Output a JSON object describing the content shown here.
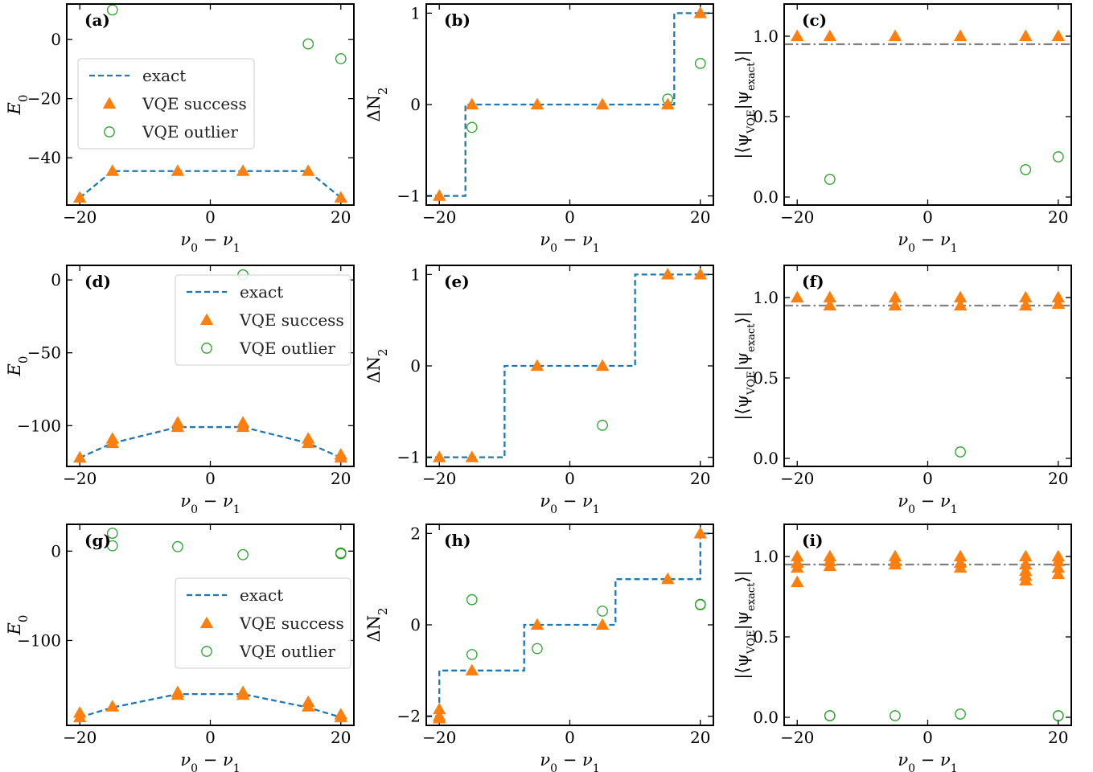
{
  "colors": {
    "exact": "#1f77b4",
    "success": "#ff7f0e",
    "outlier": "#2ca02c",
    "threshold": "#808080"
  },
  "chart_data": [
    {
      "panel": "(a)",
      "type": "scatter",
      "kind": "energy",
      "xlabel": "ν₀ − ν₁",
      "ylabel": "E₀",
      "xlim": [
        -22,
        22
      ],
      "ylim": [
        -56,
        12
      ],
      "xticks": [
        -20,
        0,
        20
      ],
      "yticks": [
        0,
        -20,
        -40
      ],
      "legend": {
        "position": "center-left",
        "entries": [
          "exact",
          "VQE success",
          "VQE outlier"
        ]
      },
      "exact": {
        "x": [
          -20,
          -15,
          -5,
          5,
          15,
          20
        ],
        "y": [
          -53.5,
          -44.5,
          -44.5,
          -44.5,
          -44.5,
          -53.5
        ]
      },
      "success": {
        "x": [
          -20,
          -15,
          -5,
          5,
          15,
          20
        ],
        "y": [
          -53.5,
          -44.5,
          -44.5,
          -44.5,
          -44.5,
          -53.5
        ]
      },
      "outlier": {
        "x": [
          -15,
          15,
          20
        ],
        "y": [
          10,
          -1.5,
          -6.5
        ]
      }
    },
    {
      "panel": "(b)",
      "type": "scatter",
      "kind": "step",
      "xlabel": "ν₀ − ν₁",
      "ylabel": "ΔN₂",
      "xlim": [
        -22,
        22
      ],
      "ylim": [
        -1.1,
        1.1
      ],
      "xticks": [
        -20,
        0,
        20
      ],
      "yticks": [
        -1,
        0,
        1
      ],
      "exact": {
        "x": [
          -22,
          -16,
          -16,
          16,
          16,
          22
        ],
        "y": [
          -1,
          -1,
          0,
          0,
          1,
          1
        ]
      },
      "success": {
        "x": [
          -20,
          -15,
          -5,
          5,
          15,
          20
        ],
        "y": [
          -1,
          0,
          0,
          0,
          0,
          1
        ]
      },
      "outlier": {
        "x": [
          -15,
          15,
          20
        ],
        "y": [
          -0.25,
          0.06,
          0.45
        ]
      }
    },
    {
      "panel": "(c)",
      "type": "scatter",
      "kind": "overlap",
      "xlabel": "ν₀ − ν₁",
      "ylabel": "|⟨ψVQE|ψexact⟩|",
      "xlim": [
        -22,
        22
      ],
      "ylim": [
        -0.05,
        1.2
      ],
      "xticks": [
        -20,
        0,
        20
      ],
      "yticks": [
        0.0,
        0.5,
        1.0
      ],
      "threshold": 0.95,
      "success": {
        "x": [
          -20,
          -15,
          -5,
          5,
          15,
          20
        ],
        "y": [
          1.0,
          1.0,
          1.0,
          1.0,
          1.0,
          1.0
        ]
      },
      "outlier": {
        "x": [
          -15,
          15,
          20
        ],
        "y": [
          0.11,
          0.17,
          0.25
        ]
      }
    },
    {
      "panel": "(d)",
      "type": "scatter",
      "kind": "energy",
      "xlabel": "ν₀ − ν₁",
      "ylabel": "E₀",
      "xlim": [
        -22,
        22
      ],
      "ylim": [
        -128,
        10
      ],
      "xticks": [
        -20,
        0,
        20
      ],
      "yticks": [
        0,
        -50,
        -100
      ],
      "legend": {
        "position": "top-right",
        "entries": [
          "exact",
          "VQE success",
          "VQE outlier"
        ]
      },
      "exact": {
        "x": [
          -20,
          -15,
          -5,
          5,
          15,
          20
        ],
        "y": [
          -122,
          -112,
          -101,
          -101,
          -112,
          -122
        ]
      },
      "success": {
        "x": [
          -20,
          -15,
          -15,
          -5,
          -5,
          5,
          5,
          15,
          15,
          20,
          20
        ],
        "y": [
          -122,
          -112,
          -109,
          -101,
          -98,
          -101,
          -98,
          -112,
          -109,
          -122,
          -120
        ]
      },
      "outlier": {
        "x": [
          5
        ],
        "y": [
          3.5
        ]
      }
    },
    {
      "panel": "(e)",
      "type": "scatter",
      "kind": "step",
      "xlabel": "ν₀ − ν₁",
      "ylabel": "ΔN₂",
      "xlim": [
        -22,
        22
      ],
      "ylim": [
        -1.1,
        1.1
      ],
      "xticks": [
        -20,
        0,
        20
      ],
      "yticks": [
        -1,
        0,
        1
      ],
      "exact": {
        "x": [
          -22,
          -10,
          -10,
          10,
          10,
          22
        ],
        "y": [
          -1,
          -1,
          0,
          0,
          1,
          1
        ]
      },
      "success": {
        "x": [
          -20,
          -15,
          -5,
          5,
          15,
          20
        ],
        "y": [
          -1,
          -1,
          0,
          0,
          1,
          1
        ]
      },
      "outlier": {
        "x": [
          5
        ],
        "y": [
          -0.65
        ]
      }
    },
    {
      "panel": "(f)",
      "type": "scatter",
      "kind": "overlap",
      "xlabel": "ν₀ − ν₁",
      "ylabel": "|⟨ψVQE|ψexact⟩|",
      "xlim": [
        -22,
        22
      ],
      "ylim": [
        -0.05,
        1.2
      ],
      "xticks": [
        -20,
        0,
        20
      ],
      "yticks": [
        0.0,
        0.5,
        1.0
      ],
      "threshold": 0.95,
      "success": {
        "x": [
          -20,
          -15,
          -15,
          -5,
          -5,
          5,
          5,
          15,
          15,
          20,
          20
        ],
        "y": [
          1.0,
          1.0,
          0.95,
          1.0,
          0.95,
          1.0,
          0.95,
          1.0,
          0.95,
          1.0,
          0.96
        ]
      },
      "outlier": {
        "x": [
          5
        ],
        "y": [
          0.04
        ]
      }
    },
    {
      "panel": "(g)",
      "type": "scatter",
      "kind": "energy",
      "xlabel": "ν₀ − ν₁",
      "ylabel": "E₀",
      "xlim": [
        -22,
        22
      ],
      "ylim": [
        -195,
        30
      ],
      "xticks": [
        -20,
        0,
        20
      ],
      "yticks": [
        0,
        -100
      ],
      "legend": {
        "position": "center-right",
        "entries": [
          "exact",
          "VQE success",
          "VQE outlier"
        ]
      },
      "exact": {
        "x": [
          -20,
          -15,
          -5,
          5,
          15,
          20
        ],
        "y": [
          -186,
          -175,
          -160,
          -160,
          -175,
          -186
        ]
      },
      "success": {
        "x": [
          -20,
          -20,
          -15,
          -5,
          -5,
          5,
          5,
          15,
          15,
          20,
          20
        ],
        "y": [
          -186,
          -181,
          -174,
          -161,
          -158,
          -161,
          -158,
          -174,
          -169,
          -186,
          -183
        ]
      },
      "outlier": {
        "x": [
          -15,
          -15,
          -5,
          5,
          20,
          20
        ],
        "y": [
          20,
          6,
          5,
          -4,
          -2,
          -3
        ]
      }
    },
    {
      "panel": "(h)",
      "type": "scatter",
      "kind": "step",
      "xlabel": "ν₀ − ν₁",
      "ylabel": "ΔN₂",
      "xlim": [
        -22,
        22
      ],
      "ylim": [
        -2.2,
        2.2
      ],
      "xticks": [
        -20,
        0,
        20
      ],
      "yticks": [
        -2,
        0,
        2
      ],
      "exact": {
        "x": [
          -22,
          -20,
          -20,
          -7,
          -7,
          7,
          7,
          20,
          20,
          22
        ],
        "y": [
          -2,
          -2,
          -1,
          -1,
          0,
          0,
          1,
          1,
          2,
          2
        ]
      },
      "success": {
        "x": [
          -20,
          -20,
          -20,
          -15,
          -5,
          5,
          15,
          20
        ],
        "y": [
          -2,
          -1.85,
          -2.05,
          -1,
          0,
          0,
          1,
          2
        ]
      },
      "outlier": {
        "x": [
          -15,
          -15,
          -5,
          5,
          20,
          20
        ],
        "y": [
          0.55,
          -0.65,
          -0.52,
          0.3,
          0.45,
          0.44
        ]
      }
    },
    {
      "panel": "(i)",
      "type": "scatter",
      "kind": "overlap",
      "xlabel": "ν₀ − ν₁",
      "ylabel": "|⟨ψVQE|ψexact⟩|",
      "xlim": [
        -22,
        22
      ],
      "ylim": [
        -0.05,
        1.2
      ],
      "xticks": [
        -20,
        0,
        20
      ],
      "yticks": [
        0.0,
        0.5,
        1.0
      ],
      "threshold": 0.95,
      "success": {
        "x": [
          -20,
          -20,
          -20,
          -20,
          -15,
          -15,
          -15,
          -5,
          -5,
          -5,
          5,
          5,
          5,
          15,
          15,
          15,
          15,
          15,
          20,
          20,
          20,
          20
        ],
        "y": [
          1.0,
          0.96,
          0.93,
          0.84,
          1.0,
          0.97,
          0.94,
          1.0,
          0.97,
          0.95,
          1.0,
          0.96,
          0.93,
          1.0,
          0.95,
          0.91,
          0.88,
          0.85,
          1.0,
          0.97,
          0.93,
          0.89
        ]
      },
      "outlier": {
        "x": [
          -15,
          -15,
          -5,
          5,
          20,
          20
        ],
        "y": [
          0.01,
          0.01,
          0.01,
          0.02,
          0.01,
          0.01
        ]
      }
    }
  ]
}
